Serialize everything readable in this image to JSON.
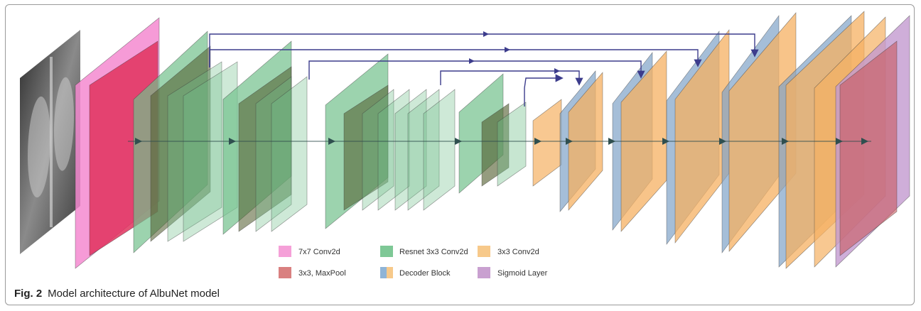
{
  "figure": {
    "caption_label": "Fig. 2",
    "caption_text": "Model architecture of AlbuNet model"
  },
  "legend": [
    {
      "label": "7x7 Conv2d",
      "color": "#f5a0d8"
    },
    {
      "label": "3x3, MaxPool",
      "color": "#d98080"
    },
    {
      "label": "Resnet 3x3 Conv2d",
      "color": "#7ec896"
    },
    {
      "label": "Decoder Block",
      "color": "#f7c98a",
      "color2": "#8fb4d6"
    },
    {
      "label": "3x3 Conv2d",
      "color": "#f7c98a"
    },
    {
      "label": "Sigmoid Layer",
      "color": "#c9a0d0"
    }
  ],
  "colors": {
    "conv7": "#f58ad0",
    "maxpool": "#e0335e",
    "resnet": "#72c08c",
    "resnet_dark": "#4e5a2a",
    "decoder_orange": "#f5b062",
    "decoder_blue": "#7fa3c8",
    "sigmoid": "#c39ad0",
    "sigmoid_red": "#c8585e",
    "skip_line": "#3c3c8c",
    "flow_arrow": "#2f4f4f"
  },
  "icons": {
    "input_image": "chest-xray-image"
  }
}
